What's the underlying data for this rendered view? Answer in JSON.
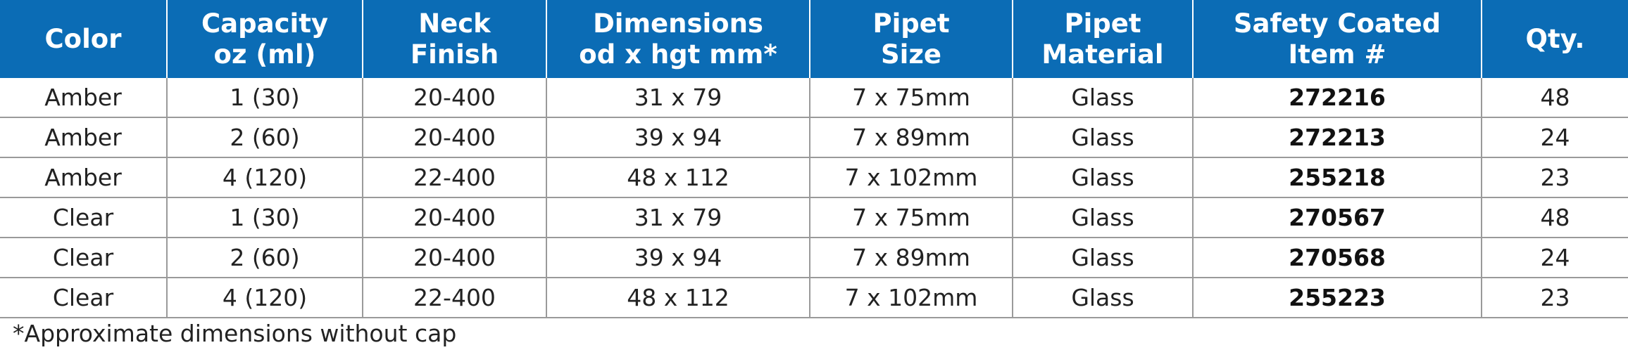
{
  "table": {
    "header": [
      [
        "Color"
      ],
      [
        "Capacity",
        "oz (ml)"
      ],
      [
        "Neck",
        "Finish"
      ],
      [
        "Dimensions",
        "od x hgt mm*"
      ],
      [
        "Pipet",
        "Size"
      ],
      [
        "Pipet",
        "Material"
      ],
      [
        "Safety Coated",
        "Item #"
      ],
      [
        "Qty."
      ]
    ],
    "rows": [
      [
        "Amber",
        "1 (30)",
        "20-400",
        "31 x 79",
        "7 x 75mm",
        "Glass",
        "272216",
        "48"
      ],
      [
        "Amber",
        "2 (60)",
        "20-400",
        "39 x 94",
        "7 x 89mm",
        "Glass",
        "272213",
        "24"
      ],
      [
        "Amber",
        "4 (120)",
        "22-400",
        "48 x 112",
        "7 x 102mm",
        "Glass",
        "255218",
        "23"
      ],
      [
        "Clear",
        "1 (30)",
        "20-400",
        "31 x 79",
        "7 x 75mm",
        "Glass",
        "270567",
        "48"
      ],
      [
        "Clear",
        "2 (60)",
        "20-400",
        "39 x 94",
        "7 x 89mm",
        "Glass",
        "270568",
        "24"
      ],
      [
        "Clear",
        "4 (120)",
        "22-400",
        "48 x 112",
        "7 x 102mm",
        "Glass",
        "255223",
        "23"
      ]
    ]
  },
  "footnote": "*Approximate dimensions without cap"
}
